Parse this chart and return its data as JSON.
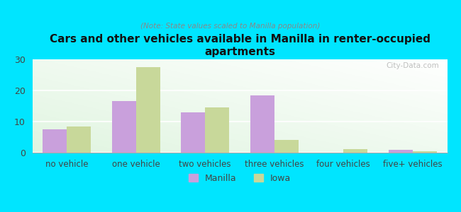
{
  "title": "Cars and other vehicles available in Manilla in renter-occupied\napartments",
  "subtitle": "(Note: State values scaled to Manilla population)",
  "categories": [
    "no vehicle",
    "one vehicle",
    "two vehicles",
    "three vehicles",
    "four vehicles",
    "five+ vehicles"
  ],
  "manilla_values": [
    7.5,
    16.5,
    13.0,
    18.5,
    0,
    1.0
  ],
  "iowa_values": [
    8.5,
    27.5,
    14.5,
    4.0,
    1.2,
    0.4
  ],
  "manilla_color": "#c9a0dc",
  "iowa_color": "#c8d89a",
  "background_color": "#00e5ff",
  "ylim": [
    0,
    30
  ],
  "yticks": [
    0,
    10,
    20,
    30
  ],
  "bar_width": 0.35,
  "legend_manilla": "Manilla",
  "legend_iowa": "Iowa",
  "watermark": "City-Data.com"
}
